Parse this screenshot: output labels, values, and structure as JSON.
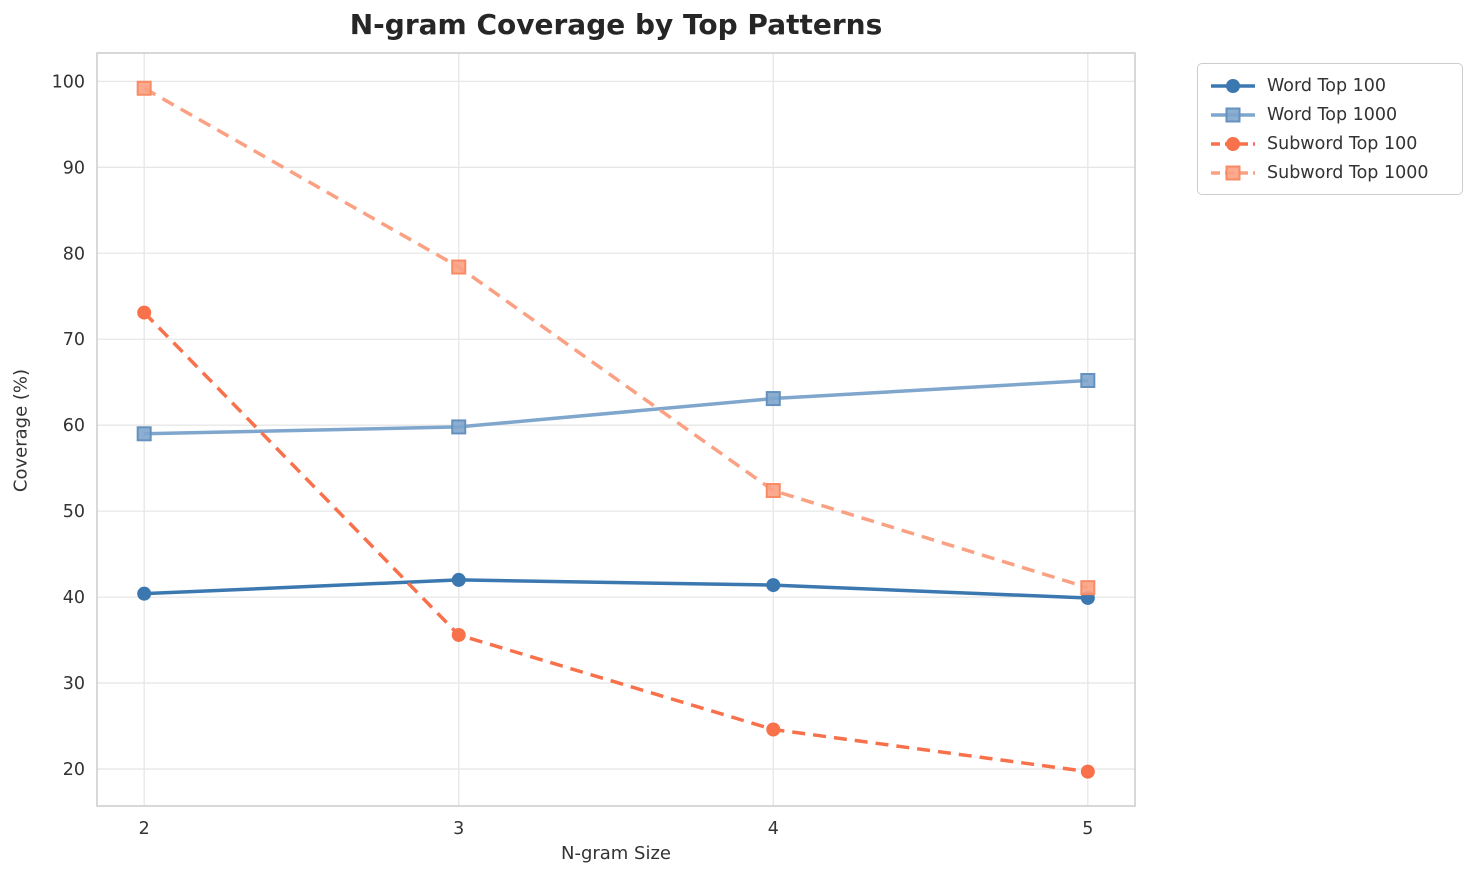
{
  "title": "N-gram Coverage by Top Patterns",
  "chart_data": {
    "type": "line",
    "title": "N-gram Coverage by Top Patterns",
    "xlabel": "N-gram Size",
    "ylabel": "Coverage (%)",
    "x": [
      2,
      3,
      4,
      5
    ],
    "xticks": [
      2,
      3,
      4,
      5
    ],
    "yticks": [
      20,
      30,
      40,
      50,
      60,
      70,
      80,
      90,
      100
    ],
    "xlim": [
      1.85,
      5.15
    ],
    "ylim": [
      15.7,
      103.3
    ],
    "grid": true,
    "legend_position": "outside-top-right",
    "series": [
      {
        "name": "Word Top 100",
        "values": [
          40.4,
          42.0,
          41.4,
          39.9
        ],
        "color": "#3C78B0",
        "edge": "#2F6699",
        "marker": "circle",
        "style": "solid"
      },
      {
        "name": "Word Top 1000",
        "values": [
          59.0,
          59.8,
          63.1,
          65.2
        ],
        "color": "#7FA6CC",
        "edge": "#6591BE",
        "marker": "square",
        "style": "solid"
      },
      {
        "name": "Subword Top 100",
        "values": [
          73.1,
          35.6,
          24.6,
          19.7
        ],
        "color": "#F8714B",
        "edge": "#E05E3A",
        "marker": "circle",
        "style": "dashed"
      },
      {
        "name": "Subword Top 1000",
        "values": [
          99.2,
          78.4,
          52.4,
          41.1
        ],
        "color": "#FBA183",
        "edge": "#F98B64",
        "marker": "square",
        "style": "dashed"
      }
    ]
  }
}
